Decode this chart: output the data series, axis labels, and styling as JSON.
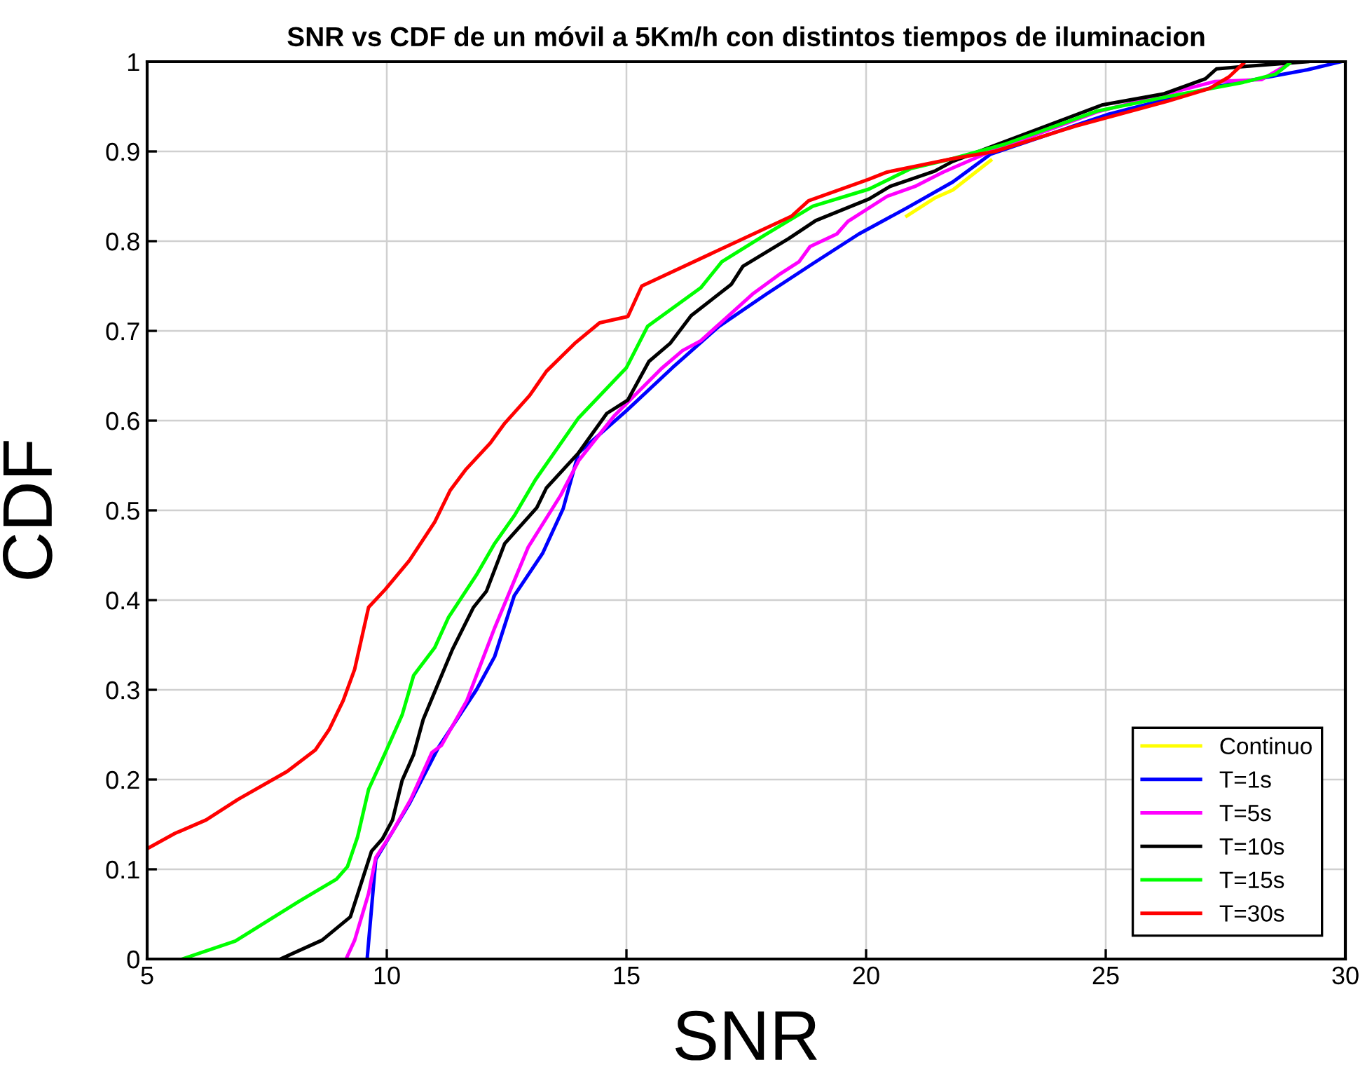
{
  "chart_data": {
    "type": "line",
    "title": "SNR vs CDF de un móvil a 5Km/h con distintos tiempos de iluminacion",
    "xlabel": "SNR",
    "ylabel": "CDF",
    "xlim": [
      5,
      30
    ],
    "ylim": [
      0,
      1
    ],
    "xticks": [
      5,
      10,
      15,
      20,
      25,
      30
    ],
    "yticks": [
      0,
      0.1,
      0.2,
      0.3,
      0.4,
      0.5,
      0.6,
      0.7,
      0.8,
      0.9,
      1
    ],
    "grid": true,
    "legend": "bottom right",
    "line_style": "solid",
    "marker": "none",
    "series": [
      {
        "name": "Continuo",
        "color": "#ffff00",
        "x": [
          20.85,
          21.43,
          21.81,
          22.6
        ],
        "values": [
          0.828,
          0.848,
          0.857,
          0.89
        ]
      },
      {
        "name": "T=1s",
        "color": "#0000ff",
        "x": [
          9.59,
          9.77,
          10.47,
          11.08,
          11.87,
          12.25,
          12.66,
          13.25,
          13.68,
          14.0,
          15.0,
          15.96,
          16.93,
          17.92,
          18.89,
          19.85,
          20.85,
          21.81,
          22.6,
          25.03,
          27.28,
          29.21,
          29.91
        ],
        "values": [
          0.0,
          0.111,
          0.173,
          0.236,
          0.3,
          0.337,
          0.405,
          0.452,
          0.502,
          0.564,
          0.611,
          0.659,
          0.705,
          0.741,
          0.775,
          0.808,
          0.837,
          0.866,
          0.897,
          0.941,
          0.972,
          0.991,
          1.0
        ]
      },
      {
        "name": "T=5s",
        "color": "#ff00ff",
        "x": [
          9.15,
          9.33,
          9.62,
          9.77,
          10.12,
          10.5,
          10.94,
          11.14,
          11.67,
          12.25,
          12.95,
          13.63,
          14.01,
          14.74,
          15.73,
          16.17,
          16.55,
          17.05,
          17.63,
          18.22,
          18.6,
          18.83,
          19.39,
          19.62,
          20.44,
          21.02,
          21.61,
          22.6,
          24.82,
          27.28,
          28.25,
          28.83
        ],
        "values": [
          0.0,
          0.021,
          0.073,
          0.113,
          0.142,
          0.178,
          0.23,
          0.238,
          0.288,
          0.369,
          0.459,
          0.517,
          0.556,
          0.605,
          0.658,
          0.678,
          0.689,
          0.713,
          0.741,
          0.764,
          0.777,
          0.794,
          0.808,
          0.822,
          0.85,
          0.861,
          0.877,
          0.9,
          0.944,
          0.978,
          0.98,
          0.998
        ]
      },
      {
        "name": "T=10s",
        "color": "#000000",
        "x": [
          7.78,
          8.65,
          9.24,
          9.68,
          9.91,
          10.12,
          10.32,
          10.56,
          10.76,
          11.08,
          11.37,
          11.81,
          12.08,
          12.46,
          13.13,
          13.33,
          14.0,
          14.59,
          15.03,
          15.47,
          15.91,
          16.35,
          17.19,
          17.43,
          18.39,
          18.95,
          20.06,
          20.5,
          21.43,
          21.81,
          22.6,
          24.94,
          26.2,
          27.08,
          27.31,
          27.95,
          29.21
        ],
        "values": [
          0.0,
          0.021,
          0.047,
          0.12,
          0.134,
          0.155,
          0.199,
          0.228,
          0.267,
          0.308,
          0.345,
          0.392,
          0.41,
          0.463,
          0.503,
          0.525,
          0.564,
          0.608,
          0.623,
          0.666,
          0.686,
          0.717,
          0.752,
          0.772,
          0.803,
          0.823,
          0.847,
          0.861,
          0.878,
          0.889,
          0.905,
          0.952,
          0.964,
          0.981,
          0.992,
          0.995,
          1.0
        ]
      },
      {
        "name": "T=15s",
        "color": "#00ff00",
        "x": [
          5.73,
          6.84,
          8.16,
          8.95,
          9.18,
          9.39,
          9.62,
          9.97,
          10.32,
          10.56,
          11.0,
          11.29,
          11.87,
          12.25,
          12.66,
          13.1,
          14.0,
          15.0,
          15.44,
          16.55,
          16.99,
          17.92,
          18.89,
          20.06,
          20.94,
          21.81,
          22.89,
          24.82,
          26.29,
          27.87,
          28.54,
          28.83
        ],
        "values": [
          0.0,
          0.02,
          0.064,
          0.089,
          0.103,
          0.136,
          0.189,
          0.23,
          0.272,
          0.316,
          0.347,
          0.381,
          0.428,
          0.463,
          0.494,
          0.534,
          0.603,
          0.659,
          0.705,
          0.748,
          0.777,
          0.808,
          0.839,
          0.858,
          0.881,
          0.892,
          0.908,
          0.945,
          0.961,
          0.977,
          0.986,
          0.998
        ]
      },
      {
        "name": "T=30s",
        "color": "#ff0000",
        "x": [
          5.0,
          5.58,
          6.23,
          6.9,
          7.92,
          8.51,
          8.8,
          9.09,
          9.33,
          9.62,
          9.97,
          10.47,
          11.0,
          11.32,
          11.64,
          12.16,
          12.46,
          12.98,
          13.33,
          13.92,
          14.44,
          15.03,
          15.32,
          18.45,
          18.8,
          20.06,
          20.44,
          21.81,
          22.69,
          24.36,
          26.29,
          27.16,
          27.57,
          27.87
        ],
        "values": [
          0.123,
          0.14,
          0.155,
          0.178,
          0.209,
          0.233,
          0.256,
          0.288,
          0.323,
          0.392,
          0.412,
          0.444,
          0.487,
          0.522,
          0.545,
          0.575,
          0.597,
          0.628,
          0.655,
          0.686,
          0.709,
          0.716,
          0.75,
          0.828,
          0.845,
          0.869,
          0.877,
          0.892,
          0.9,
          0.928,
          0.956,
          0.97,
          0.983,
          0.998
        ]
      }
    ]
  }
}
